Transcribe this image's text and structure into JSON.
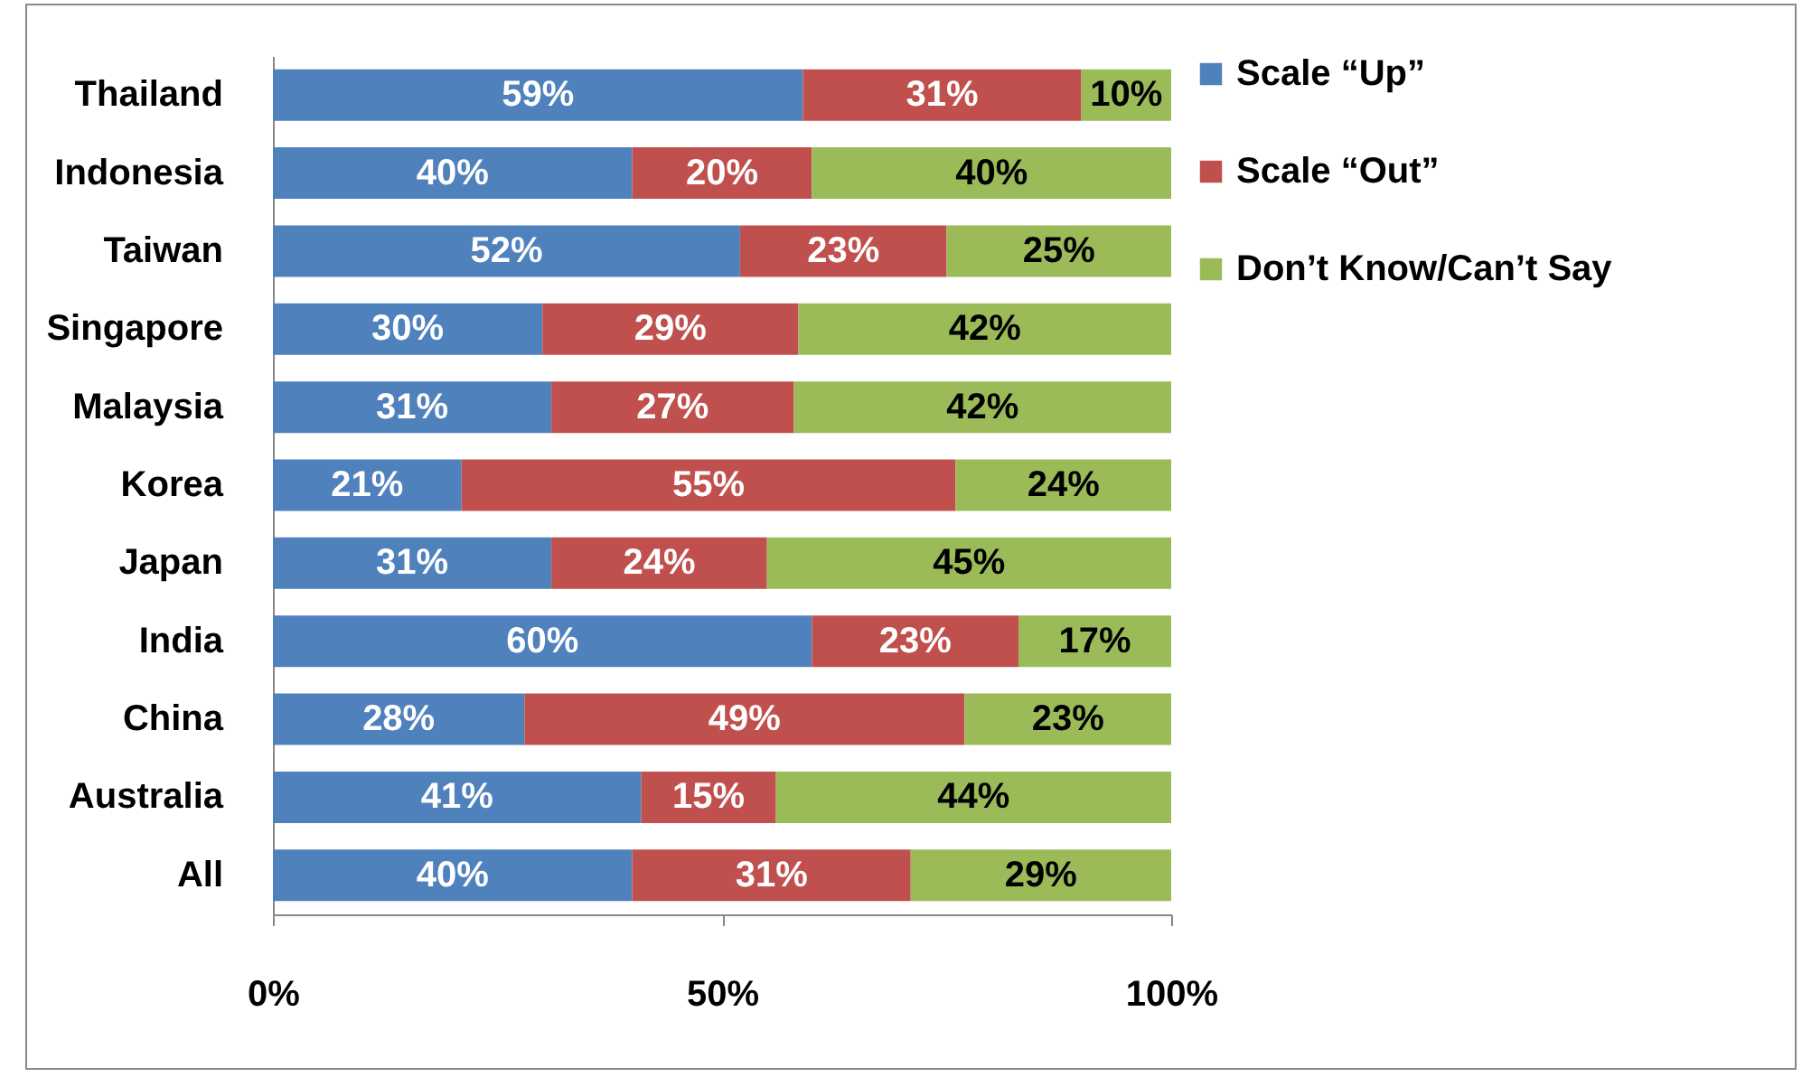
{
  "chart_data": {
    "type": "bar",
    "orientation": "horizontal",
    "stacked": true,
    "categories": [
      "Thailand",
      "Indonesia",
      "Taiwan",
      "Singapore",
      "Malaysia",
      "Korea",
      "Japan",
      "India",
      "China",
      "Australia",
      "All"
    ],
    "series": [
      {
        "name": "Scale “Up”",
        "color": "#4f81bd",
        "values": [
          59,
          40,
          52,
          30,
          31,
          21,
          31,
          60,
          28,
          41,
          40
        ],
        "value_labels": [
          "59%",
          "40%",
          "52%",
          "30%",
          "31%",
          "21%",
          "31%",
          "60%",
          "28%",
          "41%",
          "40%"
        ]
      },
      {
        "name": "Scale “Out”",
        "color": "#c0504d",
        "values": [
          31,
          20,
          23,
          28.5,
          27,
          55,
          24,
          23,
          49,
          15,
          31
        ],
        "value_labels": [
          "31%",
          "20%",
          "23%",
          "29%",
          "27%",
          "55%",
          "24%",
          "23%",
          "49%",
          "15%",
          "31%"
        ]
      },
      {
        "name": "Don’t Know/Can’t Say",
        "color": "#9bbb59",
        "values": [
          10,
          40,
          25,
          41.5,
          42,
          24,
          45,
          17,
          23,
          44,
          29
        ],
        "value_labels": [
          "10%",
          "40%",
          "25%",
          "42%",
          "42%",
          "24%",
          "45%",
          "17%",
          "23%",
          "44%",
          "29%"
        ]
      }
    ],
    "xlim": [
      0,
      100
    ],
    "xticks": [
      {
        "value": 0,
        "label": "0%"
      },
      {
        "value": 50,
        "label": "50%"
      },
      {
        "value": 100,
        "label": "100%"
      }
    ],
    "legend": "right",
    "grid": false
  }
}
